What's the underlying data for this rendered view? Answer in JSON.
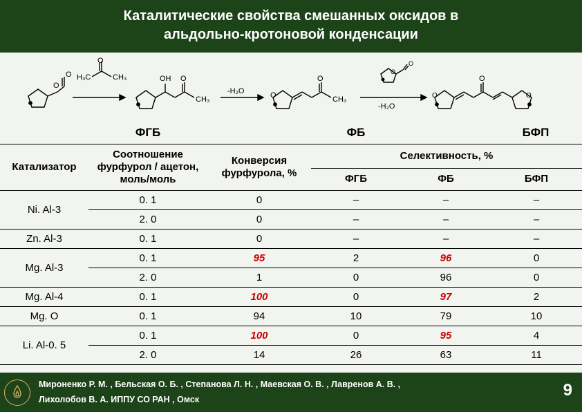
{
  "title_line1": "Каталитические свойства смешанных оксидов в",
  "title_line2": "альдольно-кротоновой конденсации",
  "scheme_annot": {
    "minus_h2o_1": "-H₂O",
    "minus_h2o_2": "-H₂O",
    "acetone_a": "H₃C",
    "acetone_b": "CH₃",
    "oh": "OH",
    "o_atom": "O",
    "ch3": "CH₃"
  },
  "labels": {
    "fgb": "ФГБ",
    "fb": "ФБ",
    "bfp": "БФП"
  },
  "headers": {
    "catalyst": "Катализатор",
    "ratio": "Соотношение фурфурол / ацетон, моль/моль",
    "conversion": "Конверсия фурфурола, %",
    "selectivity": "Селективность, %",
    "fgb": "ФГБ",
    "fb": "ФБ",
    "bfp": "БФП"
  },
  "rows": [
    {
      "catalyst": "Ni. Al-3",
      "rowspan": 2,
      "cells": [
        {
          "ratio": "0. 1",
          "conv": "0",
          "fgb": "–",
          "fb": "–",
          "bfp": "–"
        },
        {
          "ratio": "2. 0",
          "conv": "0",
          "fgb": "–",
          "fb": "–",
          "bfp": "–"
        }
      ]
    },
    {
      "catalyst": "Zn. Al-3",
      "rowspan": 1,
      "cells": [
        {
          "ratio": "0. 1",
          "conv": "0",
          "fgb": "–",
          "fb": "–",
          "bfp": "–"
        }
      ]
    },
    {
      "catalyst": "Mg. Al-3",
      "rowspan": 2,
      "cells": [
        {
          "ratio": "0. 1",
          "conv": "95",
          "conv_hl": true,
          "fgb": "2",
          "fb": "96",
          "fb_hl": true,
          "bfp": "0"
        },
        {
          "ratio": "2. 0",
          "conv": "1",
          "fgb": "0",
          "fb": "96",
          "bfp": "0"
        }
      ]
    },
    {
      "catalyst": "Mg. Al-4",
      "rowspan": 1,
      "cells": [
        {
          "ratio": "0. 1",
          "conv": "100",
          "conv_hl": true,
          "fgb": "0",
          "fb": "97",
          "fb_hl": true,
          "bfp": "2"
        }
      ]
    },
    {
      "catalyst": "Mg. O",
      "rowspan": 1,
      "cells": [
        {
          "ratio": "0. 1",
          "conv": "94",
          "fgb": "10",
          "fb": "79",
          "bfp": "10"
        }
      ]
    },
    {
      "catalyst": "Li. Al-0. 5",
      "rowspan": 2,
      "cells": [
        {
          "ratio": "0. 1",
          "conv": "100",
          "conv_hl": true,
          "fgb": "0",
          "fb": "95",
          "fb_hl": true,
          "bfp": "4"
        },
        {
          "ratio": "2. 0",
          "conv": "14",
          "fgb": "26",
          "fb": "63",
          "bfp": "11"
        }
      ]
    }
  ],
  "footer": {
    "line1": "Мироненко Р. М. , Бельская О. Б. , Степанова Л. Н. , Маевская О. В. , Лавренов А. В. ,",
    "line2": "Лихолобов В. А. ИППУ СО РАН , Омск"
  },
  "slide_number": "9",
  "colors": {
    "header_bg": "#1d4318",
    "page_bg": "#f2f4ef",
    "highlight": "#cc0000",
    "badge_border": "#e0b060"
  }
}
